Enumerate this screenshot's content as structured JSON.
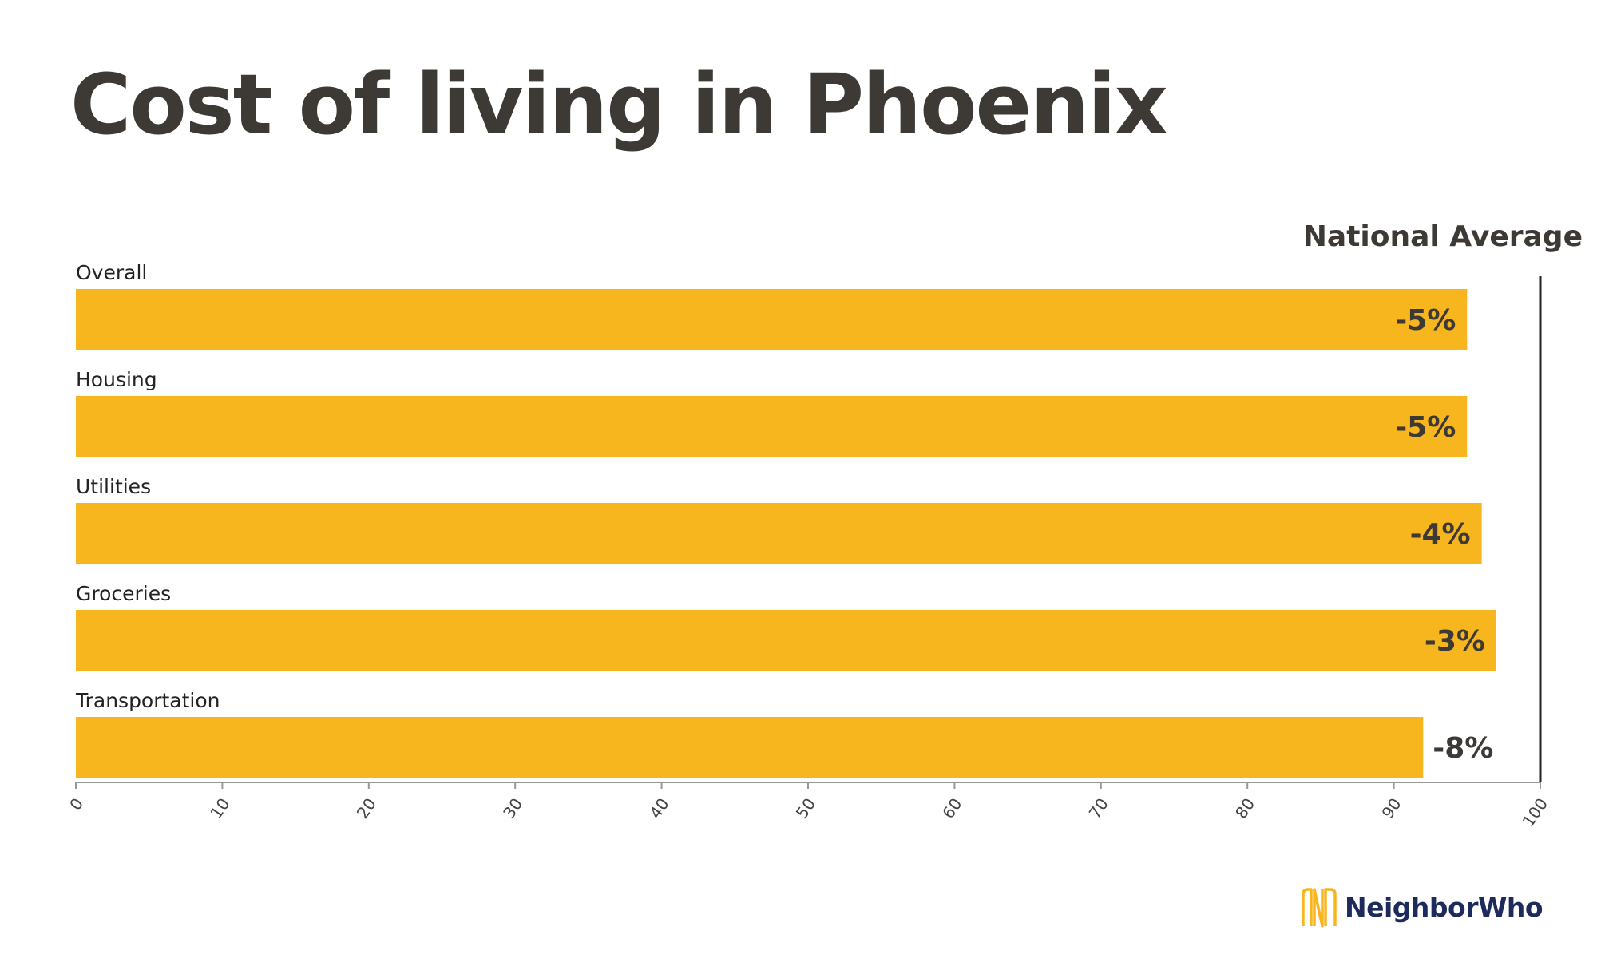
{
  "title": "Cost of living in Phoenix",
  "brand": {
    "name": "NeighborWho",
    "logo_icon": "neighborwho-logo-icon"
  },
  "colors": {
    "bar": "#f7b51e",
    "text": "#3d3935",
    "axis": "#999999",
    "reference_line": "#222222",
    "brand": "#1d2b5c"
  },
  "chart_data": {
    "type": "bar",
    "orientation": "horizontal",
    "title": "Cost of living in Phoenix",
    "categories": [
      "Overall",
      "Housing",
      "Utilities",
      "Groceries",
      "Transportation"
    ],
    "values": [
      95,
      95,
      96,
      97,
      92
    ],
    "data_labels": [
      "-5%",
      "-5%",
      "-4%",
      "-3%",
      "-8%"
    ],
    "xlim": [
      0,
      100
    ],
    "x_ticks": [
      0,
      10,
      20,
      30,
      40,
      50,
      60,
      70,
      80,
      90,
      100
    ],
    "reference_line": {
      "value": 100,
      "label": "National Average"
    },
    "grid": false,
    "legend": "none"
  }
}
